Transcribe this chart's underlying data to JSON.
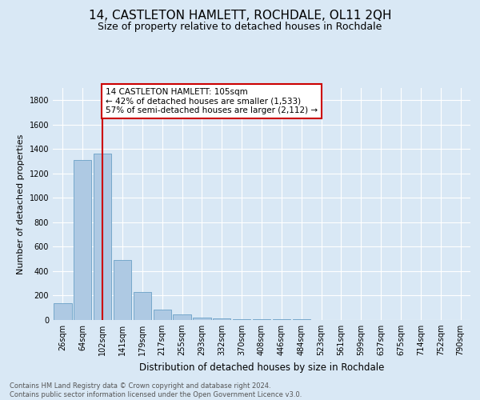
{
  "title": "14, CASTLETON HAMLETT, ROCHDALE, OL11 2QH",
  "subtitle": "Size of property relative to detached houses in Rochdale",
  "xlabel": "Distribution of detached houses by size in Rochdale",
  "ylabel": "Number of detached properties",
  "footnote": "Contains HM Land Registry data © Crown copyright and database right 2024.\nContains public sector information licensed under the Open Government Licence v3.0.",
  "bar_labels": [
    "26sqm",
    "64sqm",
    "102sqm",
    "141sqm",
    "179sqm",
    "217sqm",
    "255sqm",
    "293sqm",
    "332sqm",
    "370sqm",
    "408sqm",
    "446sqm",
    "484sqm",
    "523sqm",
    "561sqm",
    "599sqm",
    "637sqm",
    "675sqm",
    "714sqm",
    "752sqm",
    "790sqm"
  ],
  "bar_values": [
    140,
    1310,
    1360,
    490,
    228,
    82,
    46,
    22,
    16,
    5,
    5,
    4,
    5,
    0,
    0,
    0,
    0,
    0,
    0,
    0,
    0
  ],
  "bar_color": "#aec9e3",
  "bar_edge_color": "#6aa0c7",
  "vline_x_index": 2,
  "vline_color": "#cc0000",
  "annotation_text": "14 CASTLETON HAMLETT: 105sqm\n← 42% of detached houses are smaller (1,533)\n57% of semi-detached houses are larger (2,112) →",
  "annotation_box_color": "#ffffff",
  "annotation_box_edge_color": "#cc0000",
  "annotation_fontsize": 7.5,
  "bg_color": "#d9e8f5",
  "plot_bg_color": "#d9e8f5",
  "grid_color": "#ffffff",
  "ylim": [
    0,
    1900
  ],
  "yticks": [
    0,
    200,
    400,
    600,
    800,
    1000,
    1200,
    1400,
    1600,
    1800
  ],
  "title_fontsize": 11,
  "subtitle_fontsize": 9,
  "xlabel_fontsize": 8.5,
  "ylabel_fontsize": 8,
  "tick_fontsize": 7
}
